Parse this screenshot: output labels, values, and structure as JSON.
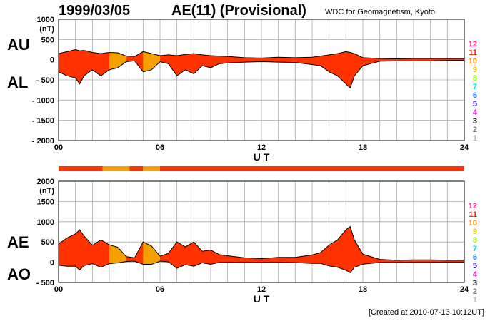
{
  "header": {
    "date": "1999/03/05",
    "title": "AE(11) (Provisional)",
    "org": "WDC for Geomagnetism, Kyoto",
    "created": "[Created at 2010-07-13 10:12UT]"
  },
  "labels": {
    "top_upper": "AU",
    "top_lower": "AL",
    "bot_upper": "AE",
    "bot_lower": "AO",
    "unit": "(nT)",
    "ut": "U T"
  },
  "colors": {
    "grid": "#aaaaaa",
    "fill_main": "#ff3300",
    "fill_alt": "#f5a000",
    "line": "#000000"
  },
  "level_legend": [
    {
      "label": "12",
      "color": "#ff1493"
    },
    {
      "label": "11",
      "color": "#ff2200"
    },
    {
      "label": "10",
      "color": "#ff8c00"
    },
    {
      "label": "9",
      "color": "#e8d000"
    },
    {
      "label": "8",
      "color": "#99ff00"
    },
    {
      "label": "7",
      "color": "#00e5d0"
    },
    {
      "label": "6",
      "color": "#2277ff"
    },
    {
      "label": "5",
      "color": "#2200cc"
    },
    {
      "label": "4",
      "color": "#cc00cc"
    },
    {
      "label": "3",
      "color": "#000000"
    },
    {
      "label": "2",
      "color": "#777777"
    },
    {
      "label": "1",
      "color": "#bbbbbb"
    }
  ],
  "chart_data": [
    {
      "type": "area",
      "name": "AU/AL",
      "xlabel": "U T",
      "ylabel": "(nT)",
      "xlim": [
        0,
        24
      ],
      "ylim": [
        -2000,
        1000
      ],
      "xticks": [
        "00",
        "06",
        "12",
        "18",
        "24"
      ],
      "yticks": [
        "1000",
        "500",
        "0",
        "- 500",
        "- 1000",
        "- 1500",
        "- 2000"
      ],
      "x": [
        0,
        0.5,
        1,
        1.25,
        1.5,
        2,
        2.5,
        3,
        3.5,
        4,
        4.5,
        5,
        5.5,
        6,
        6.5,
        7,
        7.5,
        8,
        8.5,
        9,
        9.5,
        10,
        11,
        12,
        13,
        14,
        15,
        15.5,
        16,
        16.5,
        17,
        17.25,
        17.5,
        18,
        19,
        20,
        21,
        22,
        23,
        24
      ],
      "series": [
        {
          "name": "AU",
          "values": [
            150,
            200,
            250,
            220,
            230,
            180,
            150,
            180,
            170,
            90,
            80,
            200,
            150,
            100,
            120,
            100,
            130,
            150,
            120,
            100,
            90,
            80,
            50,
            40,
            60,
            50,
            60,
            90,
            120,
            150,
            200,
            180,
            150,
            50,
            30,
            20,
            30,
            30,
            30,
            30
          ]
        },
        {
          "name": "AL",
          "values": [
            -300,
            -400,
            -450,
            -600,
            -400,
            -250,
            -400,
            -250,
            -200,
            -50,
            -30,
            -300,
            -250,
            -50,
            -100,
            -400,
            -250,
            -350,
            -150,
            -200,
            -100,
            -80,
            -60,
            -50,
            -60,
            -70,
            -120,
            -150,
            -300,
            -400,
            -600,
            -700,
            -400,
            -150,
            -40,
            -30,
            -30,
            -30,
            -20,
            -20
          ]
        }
      ]
    },
    {
      "type": "area",
      "name": "AE/AO",
      "xlabel": "U T",
      "ylabel": "(nT)",
      "xlim": [
        0,
        24
      ],
      "ylim": [
        -500,
        2000
      ],
      "xticks": [
        "00",
        "06",
        "12",
        "18",
        "24"
      ],
      "yticks": [
        "2000",
        "1500",
        "1000",
        "500",
        "0",
        "- 500"
      ],
      "x": [
        0,
        0.5,
        1,
        1.25,
        1.5,
        2,
        2.5,
        3,
        3.5,
        4,
        4.5,
        5,
        5.5,
        6,
        6.5,
        7,
        7.5,
        8,
        8.5,
        9,
        9.5,
        10,
        11,
        12,
        13,
        14,
        15,
        15.5,
        16,
        16.5,
        17,
        17.25,
        17.5,
        18,
        19,
        20,
        21,
        22,
        23,
        24
      ],
      "series": [
        {
          "name": "AE",
          "values": [
            450,
            600,
            700,
            800,
            650,
            420,
            550,
            430,
            370,
            140,
            110,
            500,
            400,
            150,
            220,
            500,
            380,
            500,
            270,
            300,
            190,
            160,
            110,
            90,
            120,
            120,
            180,
            240,
            420,
            550,
            800,
            880,
            550,
            200,
            70,
            50,
            60,
            60,
            50,
            50
          ]
        },
        {
          "name": "AO",
          "values": [
            -75,
            -100,
            -100,
            -190,
            -85,
            -35,
            -125,
            -35,
            -15,
            20,
            25,
            -50,
            -50,
            25,
            10,
            -150,
            -60,
            -100,
            -15,
            -50,
            -5,
            0,
            -5,
            -5,
            0,
            -10,
            -30,
            -30,
            -90,
            -125,
            -200,
            -260,
            -125,
            -50,
            -5,
            -5,
            0,
            0,
            5,
            5
          ]
        }
      ]
    }
  ],
  "activity_bar": [
    {
      "from": 0,
      "to": 2.6,
      "color": "#ff3300"
    },
    {
      "from": 2.6,
      "to": 4.2,
      "color": "#f5a000"
    },
    {
      "from": 4.2,
      "to": 5.0,
      "color": "#ff3300"
    },
    {
      "from": 5.0,
      "to": 6.0,
      "color": "#f5a000"
    },
    {
      "from": 6.0,
      "to": 24,
      "color": "#ff3300"
    }
  ]
}
